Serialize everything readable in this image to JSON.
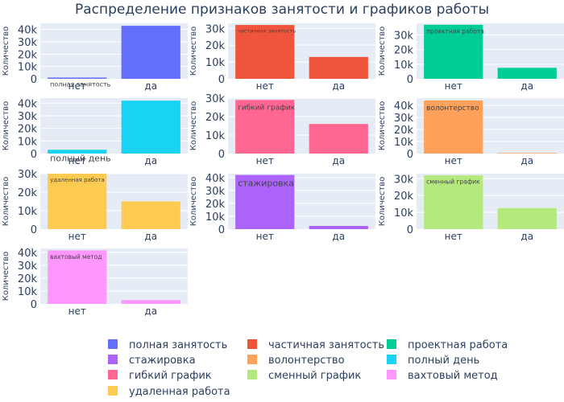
{
  "title": "Распределение признаков занятости и графиков работы",
  "chart_data": {
    "type": "bar",
    "ylabel": "Количество",
    "categories": [
      "нет",
      "да"
    ],
    "subplots": [
      {
        "name": "полная занятость",
        "color": "#636efa",
        "values": [
          1000,
          43000
        ],
        "ylim": [
          0,
          45000
        ],
        "ticks": [
          0,
          10000,
          20000,
          30000,
          40000
        ],
        "tick_labels": [
          "0",
          "10k",
          "20k",
          "30k",
          "40k"
        ]
      },
      {
        "name": "частичная занятость",
        "color": "#ef553b",
        "values": [
          32000,
          13000
        ],
        "ylim": [
          0,
          33000
        ],
        "ticks": [
          0,
          10000,
          20000,
          30000
        ],
        "tick_labels": [
          "0",
          "10k",
          "20k",
          "30k"
        ]
      },
      {
        "name": "проектная работа",
        "color": "#00cc96",
        "values": [
          37000,
          7500
        ],
        "ylim": [
          0,
          38000
        ],
        "ticks": [
          0,
          10000,
          20000,
          30000
        ],
        "tick_labels": [
          "0",
          "10k",
          "20k",
          "30k"
        ]
      },
      {
        "name": "полный день",
        "color": "#19d3f3",
        "values": [
          3000,
          42000
        ],
        "ylim": [
          0,
          44000
        ],
        "ticks": [
          0,
          10000,
          20000,
          30000,
          40000
        ],
        "tick_labels": [
          "0",
          "10k",
          "20k",
          "30k",
          "40k"
        ]
      },
      {
        "name": "гибкий график",
        "color": "#ff6692",
        "values": [
          29000,
          16000
        ],
        "ylim": [
          0,
          30000
        ],
        "ticks": [
          0,
          10000,
          20000,
          30000
        ],
        "tick_labels": [
          "0",
          "10k",
          "20k",
          "30k"
        ]
      },
      {
        "name": "волонтерство",
        "color": "#ffa15a",
        "values": [
          44000,
          500
        ],
        "ylim": [
          0,
          46000
        ],
        "ticks": [
          0,
          10000,
          20000,
          30000,
          40000
        ],
        "tick_labels": [
          "0",
          "10k",
          "20k",
          "30k",
          "40k"
        ]
      },
      {
        "name": "удаленная работа",
        "color": "#fecb52",
        "values": [
          30000,
          15000
        ],
        "ylim": [
          0,
          30000
        ],
        "ticks": [
          0,
          10000,
          20000,
          30000
        ],
        "tick_labels": [
          "0",
          "10k",
          "20k",
          "30k"
        ]
      },
      {
        "name": "стажировка",
        "color": "#ab63fa",
        "values": [
          42000,
          2500
        ],
        "ylim": [
          0,
          43000
        ],
        "ticks": [
          0,
          10000,
          20000,
          30000,
          40000
        ],
        "tick_labels": [
          "0",
          "10k",
          "20k",
          "30k",
          "40k"
        ]
      },
      {
        "name": "сменный график",
        "color": "#b6e880",
        "values": [
          32000,
          12500
        ],
        "ylim": [
          0,
          33000
        ],
        "ticks": [
          0,
          10000,
          20000,
          30000
        ],
        "tick_labels": [
          "0",
          "10k",
          "20k",
          "30k"
        ]
      },
      {
        "name": "вахтовый метод",
        "color": "#ff97ff",
        "values": [
          41500,
          3000
        ],
        "ylim": [
          0,
          43000
        ],
        "ticks": [
          0,
          10000,
          20000,
          30000,
          40000
        ],
        "tick_labels": [
          "0",
          "10k",
          "20k",
          "30k",
          "40k"
        ]
      }
    ],
    "legend": {
      "placement": "bottom",
      "order": [
        0,
        1,
        2,
        7,
        5,
        3,
        4,
        8,
        9,
        6
      ]
    }
  }
}
